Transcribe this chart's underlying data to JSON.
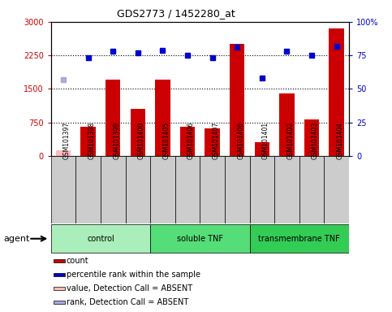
{
  "title": "GDS2773 / 1452280_at",
  "samples": [
    "GSM101397",
    "GSM101398",
    "GSM101399",
    "GSM101400",
    "GSM101405",
    "GSM101406",
    "GSM101407",
    "GSM101408",
    "GSM101401",
    "GSM101402",
    "GSM101403",
    "GSM101404"
  ],
  "counts": [
    130,
    650,
    1700,
    1050,
    1700,
    650,
    620,
    2500,
    300,
    1400,
    820,
    2850
  ],
  "percentile_ranks": [
    57,
    73,
    78,
    77,
    79,
    75,
    73,
    81,
    58,
    78,
    75,
    82
  ],
  "absent_mask": [
    true,
    false,
    false,
    false,
    false,
    false,
    false,
    false,
    false,
    false,
    false,
    false
  ],
  "groups": [
    {
      "label": "control",
      "start": 0,
      "end": 4,
      "color": "#aaeebb"
    },
    {
      "label": "soluble TNF",
      "start": 4,
      "end": 8,
      "color": "#55dd77"
    },
    {
      "label": "transmembrane TNF",
      "start": 8,
      "end": 12,
      "color": "#33cc55"
    }
  ],
  "ylim_left": [
    0,
    3000
  ],
  "ylim_right": [
    0,
    100
  ],
  "yticks_left": [
    0,
    750,
    1500,
    2250,
    3000
  ],
  "yticks_right": [
    0,
    25,
    50,
    75,
    100
  ],
  "left_color": "#cc0000",
  "right_color": "#0000cc",
  "bar_color_present": "#cc0000",
  "bar_color_absent": "#ffbbbb",
  "dot_color_present": "#0000cc",
  "dot_color_absent": "#aaaadd",
  "bg_color": "#ffffff",
  "plot_bg": "#ffffff",
  "grid_color": "#000000",
  "sample_bg_color": "#cccccc",
  "agent_label": "agent",
  "legend_items": [
    {
      "color": "#cc0000",
      "label": "count"
    },
    {
      "color": "#0000cc",
      "label": "percentile rank within the sample"
    },
    {
      "color": "#ffbbbb",
      "label": "value, Detection Call = ABSENT"
    },
    {
      "color": "#aaaadd",
      "label": "rank, Detection Call = ABSENT"
    }
  ]
}
